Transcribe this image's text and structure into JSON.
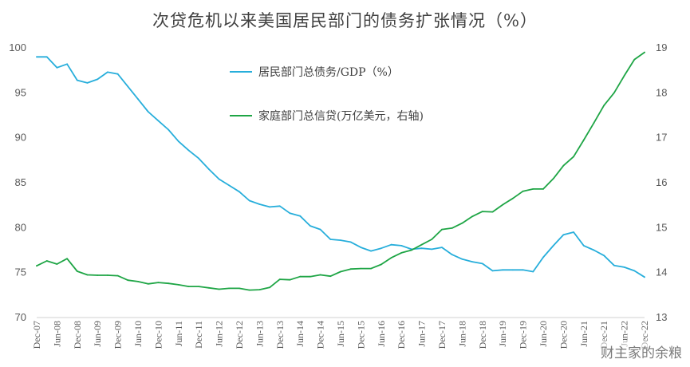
{
  "chart_data": {
    "type": "line",
    "title": "次贷危机以来美国居民部门的债务扩张情况（%）",
    "x": [
      "Dec-07",
      "Mar-08",
      "Jun-08",
      "Sep-08",
      "Dec-08",
      "Mar-09",
      "Jun-09",
      "Sep-09",
      "Dec-09",
      "Mar-10",
      "Jun-10",
      "Sep-10",
      "Dec-10",
      "Mar-11",
      "Jun-11",
      "Sep-11",
      "Dec-11",
      "Mar-12",
      "Jun-12",
      "Sep-12",
      "Dec-12",
      "Mar-13",
      "Jun-13",
      "Sep-13",
      "Dec-13",
      "Mar-14",
      "Jun-14",
      "Sep-14",
      "Dec-14",
      "Mar-15",
      "Jun-15",
      "Sep-15",
      "Dec-15",
      "Mar-16",
      "Jun-16",
      "Sep-16",
      "Dec-16",
      "Mar-17",
      "Jun-17",
      "Sep-17",
      "Dec-17",
      "Mar-18",
      "Jun-18",
      "Sep-18",
      "Dec-18",
      "Mar-19",
      "Jun-19",
      "Sep-19",
      "Dec-19",
      "Mar-20",
      "Jun-20",
      "Sep-20",
      "Dec-20",
      "Mar-21",
      "Jun-21",
      "Sep-21",
      "Dec-21",
      "Mar-22",
      "Jun-22",
      "Sep-22",
      "Dec-22"
    ],
    "xtick_labels": [
      "Dec-07",
      "Jun-08",
      "Dec-08",
      "Jun-09",
      "Dec-09",
      "Jun-10",
      "Dec-10",
      "Jun-11",
      "Dec-11",
      "Jun-12",
      "Dec-12",
      "Jun-13",
      "Dec-13",
      "Jun-14",
      "Dec-14",
      "Jun-15",
      "Dec-15",
      "Jun-16",
      "Dec-16",
      "Jun-17",
      "Dec-17",
      "Jun-18",
      "Dec-18",
      "Jun-19",
      "Dec-19",
      "Jun-20",
      "Dec-20",
      "Jun-21",
      "Dec-21",
      "Jun-22",
      "Dec-22"
    ],
    "y_left": {
      "ticks": [
        "100",
        "95",
        "90",
        "85",
        "80",
        "75",
        "70"
      ],
      "ylim": [
        70,
        100
      ]
    },
    "y_right": {
      "ticks": [
        "19",
        "18",
        "17",
        "16",
        "15",
        "14",
        "13"
      ],
      "ylim": [
        13,
        19
      ]
    },
    "series": [
      {
        "name": "居民部门总债务/GDP（%）",
        "axis": "left",
        "color": "#27AEDB",
        "values": [
          99.0,
          99.0,
          97.8,
          98.2,
          96.4,
          96.1,
          96.5,
          97.3,
          97.1,
          95.7,
          94.3,
          92.9,
          91.9,
          90.9,
          89.6,
          88.6,
          87.7,
          86.5,
          85.4,
          84.7,
          84.0,
          83.0,
          82.6,
          82.3,
          82.4,
          81.6,
          81.3,
          80.2,
          79.8,
          78.7,
          78.6,
          78.4,
          77.8,
          77.4,
          77.7,
          78.1,
          78.0,
          77.6,
          77.7,
          77.6,
          77.8,
          77.0,
          76.5,
          76.2,
          76.0,
          75.2,
          75.3,
          75.3,
          75.3,
          75.1,
          76.7,
          78.0,
          79.2,
          79.5,
          78.0,
          77.5,
          76.9,
          75.8,
          75.6,
          75.2,
          74.5
        ]
      },
      {
        "name": "家庭部门总信贷(万亿美元，右轴)",
        "axis": "right",
        "color": "#1EA545",
        "values": [
          14.15,
          14.26,
          14.19,
          14.31,
          14.03,
          13.95,
          13.94,
          13.94,
          13.93,
          13.83,
          13.8,
          13.75,
          13.78,
          13.76,
          13.73,
          13.69,
          13.69,
          13.66,
          13.63,
          13.65,
          13.65,
          13.61,
          13.62,
          13.67,
          13.85,
          13.84,
          13.91,
          13.91,
          13.95,
          13.92,
          14.02,
          14.08,
          14.09,
          14.09,
          14.18,
          14.33,
          14.44,
          14.5,
          14.62,
          14.74,
          14.96,
          14.99,
          15.1,
          15.25,
          15.36,
          15.35,
          15.51,
          15.65,
          15.81,
          15.86,
          15.86,
          16.09,
          16.38,
          16.58,
          16.95,
          17.33,
          17.72,
          18.0,
          18.38,
          18.74,
          18.9
        ]
      }
    ],
    "legend": {
      "placement": "upper-center"
    },
    "grid": false
  },
  "watermark": {
    "text": "财主家的余粮"
  }
}
